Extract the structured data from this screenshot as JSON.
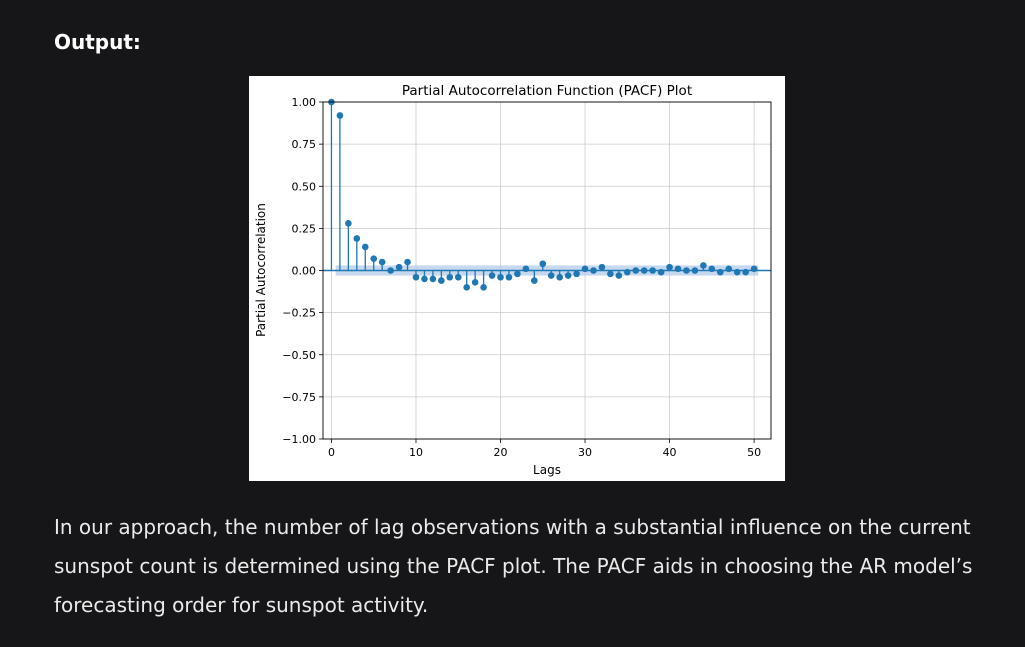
{
  "heading": "Output:",
  "paragraph": "In our approach, the number of lag observations with a substantial influence on the current sunspot count is determined using the PACF plot. The PACF aids in choosing the AR model’s forecasting order for sunspot activity.",
  "colors": {
    "page_background": "#161618",
    "marker": "#1f77b4",
    "confidence_band": "#aec7e8",
    "grid": "#cccccc"
  },
  "chart_data": {
    "type": "scatter",
    "title": "Partial Autocorrelation Function (PACF) Plot",
    "xlabel": "Lags",
    "ylabel": "Partial Autocorrelation",
    "xlim": [
      -1,
      52
    ],
    "ylim": [
      -1.0,
      1.0
    ],
    "xticks": [
      "0",
      "10",
      "20",
      "30",
      "40",
      "50"
    ],
    "yticks": [
      "1.00",
      "0.75",
      "0.50",
      "0.25",
      "0.00",
      "−0.25",
      "−0.50",
      "−0.75",
      "−1.00"
    ],
    "grid": true,
    "confidence_interval": 0.03,
    "series": [
      {
        "lags": [
          0,
          1,
          2,
          3,
          4,
          5,
          6,
          7,
          8,
          9,
          10,
          11,
          12,
          13,
          14,
          15,
          16,
          17,
          18,
          19,
          20,
          21,
          22,
          23,
          24,
          25,
          26,
          27,
          28,
          29,
          30,
          31,
          32,
          33,
          34,
          35,
          36,
          37,
          38,
          39,
          40,
          41,
          42,
          43,
          44,
          45,
          46,
          47,
          48,
          49,
          50
        ],
        "values": [
          1.0,
          0.92,
          0.28,
          0.19,
          0.14,
          0.07,
          0.05,
          0.0,
          0.02,
          0.05,
          -0.04,
          -0.05,
          -0.05,
          -0.06,
          -0.04,
          -0.04,
          -0.1,
          -0.07,
          -0.1,
          -0.03,
          -0.04,
          -0.04,
          -0.02,
          0.01,
          -0.06,
          0.04,
          -0.03,
          -0.04,
          -0.03,
          -0.02,
          0.01,
          0.0,
          0.02,
          -0.02,
          -0.03,
          -0.01,
          0.0,
          0.0,
          0.0,
          -0.01,
          0.02,
          0.01,
          0.0,
          0.0,
          0.03,
          0.01,
          -0.01,
          0.01,
          -0.01,
          -0.01,
          0.01
        ]
      }
    ]
  }
}
